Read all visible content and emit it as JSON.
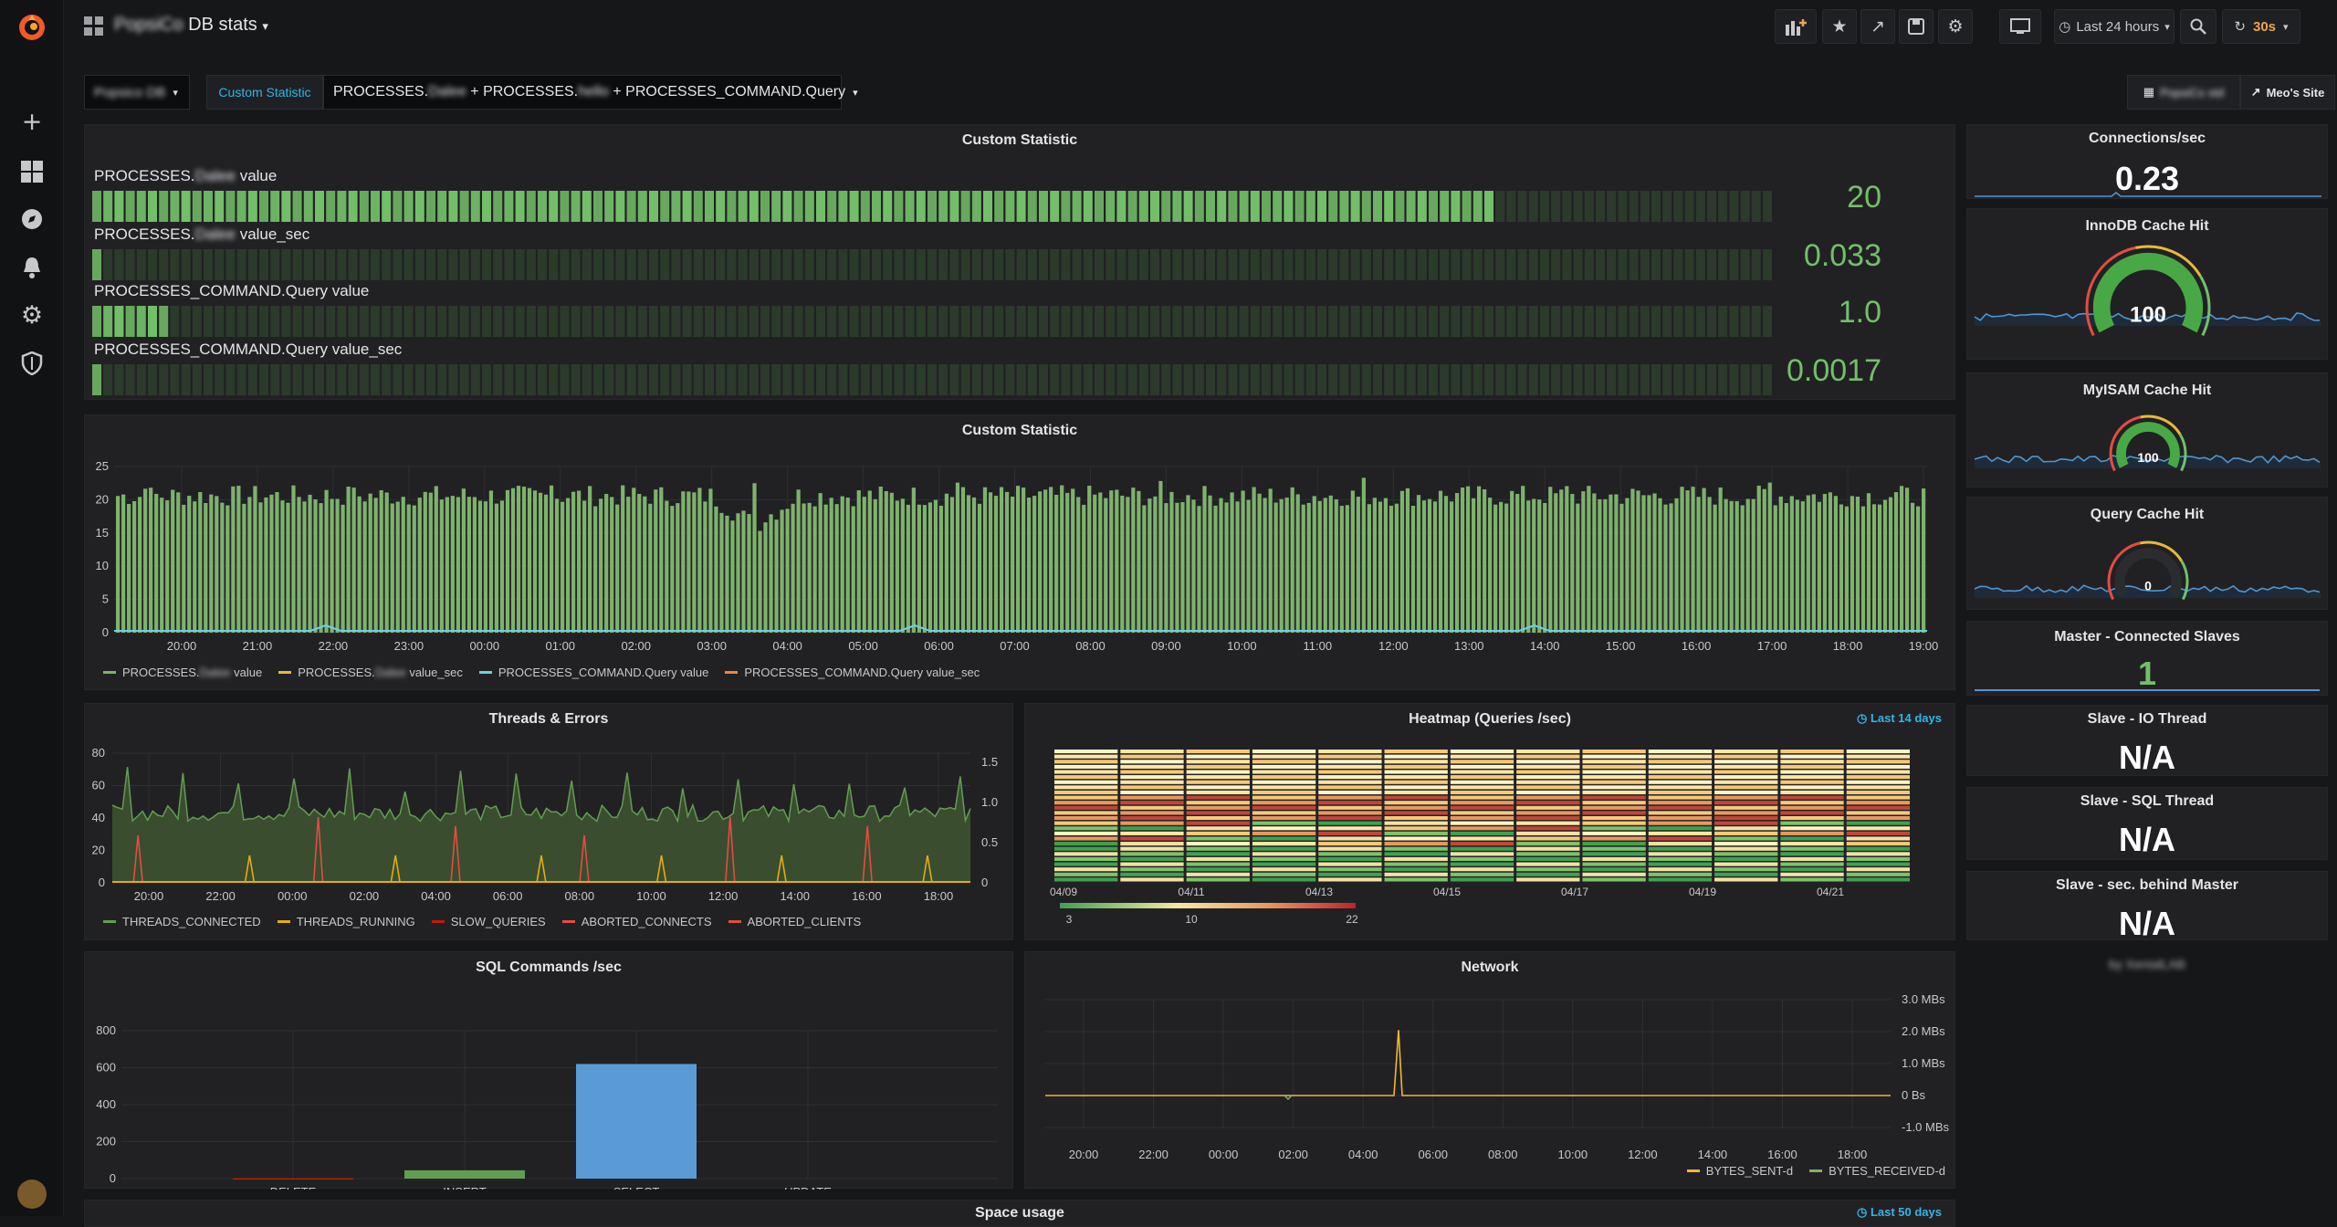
{
  "topbar": {
    "title_blur": "PopsiCo",
    "title": "DB stats",
    "time_range": "Last 24 hours",
    "refresh": "30s"
  },
  "vars": {
    "db_select": "Popsico DB",
    "stat_label": "Custom Statistic",
    "stat_value_p1": "PROCESSES.",
    "stat_value_b1": "Dalee",
    "stat_value_p2": " + PROCESSES.",
    "stat_value_b2": "hello",
    "stat_value_p3": " + PROCESSES_COMMAND.Query",
    "link1": "PopsiCo std",
    "link2": "Meo's Site"
  },
  "bargauge": {
    "title": "Custom Statistic",
    "rows": [
      {
        "label_pre": "PROCESSES.",
        "label_blur": "Dalee",
        "label_post": " value",
        "value": "20",
        "fraction": 0.835
      },
      {
        "label_pre": "PROCESSES.",
        "label_blur": "Dalee",
        "label_post": " value_sec",
        "value": "0.033",
        "fraction": 0.005
      },
      {
        "label_pre": "PROCESSES_COMMAND.Query value",
        "label_blur": "",
        "label_post": "",
        "value": "1.0",
        "fraction": 0.045
      },
      {
        "label_pre": "PROCESSES_COMMAND.Query value_sec",
        "label_blur": "",
        "label_post": "",
        "value": "0.0017",
        "fraction": 0.005
      }
    ]
  },
  "graph1": {
    "title": "Custom Statistic",
    "yticks": [
      "25",
      "20",
      "15",
      "10",
      "5",
      "0"
    ],
    "xticks": [
      "20:00",
      "21:00",
      "22:00",
      "23:00",
      "00:00",
      "01:00",
      "02:00",
      "03:00",
      "04:00",
      "05:00",
      "06:00",
      "07:00",
      "08:00",
      "09:00",
      "10:00",
      "11:00",
      "12:00",
      "13:00",
      "14:00",
      "15:00",
      "16:00",
      "17:00",
      "18:00",
      "19:00"
    ],
    "legend": [
      {
        "pre": "PROCESSES.",
        "blur": "Dalee",
        "post": " value",
        "color": "#7eb26d"
      },
      {
        "pre": "PROCESSES.",
        "blur": "Dalee",
        "post": " value_sec",
        "color": "#eab839"
      },
      {
        "pre": "PROCESSES_COMMAND.Query value",
        "blur": "",
        "post": "",
        "color": "#6ed0e0"
      },
      {
        "pre": "PROCESSES_COMMAND.Query value_sec",
        "blur": "",
        "post": "",
        "color": "#ef843c"
      }
    ]
  },
  "threads": {
    "title": "Threads & Errors",
    "yticks": [
      "80",
      "60",
      "40",
      "20",
      "0"
    ],
    "y2ticks": [
      "1.5",
      "1.0",
      "0.5",
      "0"
    ],
    "xticks": [
      "20:00",
      "22:00",
      "00:00",
      "02:00",
      "04:00",
      "06:00",
      "08:00",
      "10:00",
      "12:00",
      "14:00",
      "16:00",
      "18:00"
    ],
    "legend": [
      {
        "label": "THREADS_CONNECTED",
        "color": "#629e51"
      },
      {
        "label": "THREADS_RUNNING",
        "color": "#e5ac0e"
      },
      {
        "label": "SLOW_QUERIES",
        "color": "#bf1b00"
      },
      {
        "label": "ABORTED_CONNECTS",
        "color": "#e24d42"
      },
      {
        "label": "ABORTED_CLIENTS",
        "color": "#e24d42"
      }
    ]
  },
  "heatmap": {
    "title": "Heatmap (Queries /sec)",
    "badge": "Last 14 days",
    "xticks": [
      "04/09",
      "04/11",
      "04/13",
      "04/15",
      "04/17",
      "04/19",
      "04/21"
    ],
    "scale": [
      "3",
      "10",
      "22"
    ]
  },
  "sqlcmd": {
    "title": "SQL Commands /sec",
    "yticks": [
      "800",
      "600",
      "400",
      "200",
      "0"
    ],
    "categories": [
      "DELETE",
      "INSERT",
      "SELECT",
      "UPDATE"
    ],
    "values": [
      2,
      45,
      620,
      0
    ]
  },
  "network": {
    "title": "Network",
    "yticks": [
      "3.0 MBs",
      "2.0 MBs",
      "1.0 MBs",
      "0 Bs",
      "-1.0 MBs"
    ],
    "xticks": [
      "20:00",
      "22:00",
      "00:00",
      "02:00",
      "04:00",
      "06:00",
      "08:00",
      "10:00",
      "12:00",
      "14:00",
      "16:00",
      "18:00"
    ],
    "legend": [
      {
        "label": "BYTES_SENT-d",
        "color": "#eab839"
      },
      {
        "label": "BYTES_RECEIVED-d",
        "color": "#7eb26d"
      }
    ]
  },
  "bottom": {
    "title": "Space usage",
    "badge": "Last 50 days"
  },
  "stats": {
    "connections_title": "Connections/sec",
    "connections_value": "0.23",
    "innodb_title": "InnoDB Cache Hit",
    "innodb_value": "100",
    "myisam_title": "MyISAM Cache Hit",
    "myisam_value": "100",
    "query_title": "Query Cache Hit",
    "query_value": "0",
    "master_title": "Master - Connected Slaves",
    "master_value": "1",
    "io_title": "Slave - IO Thread",
    "io_value": "N/A",
    "sql_title": "Slave - SQL Thread",
    "sql_value": "N/A",
    "behind_title": "Slave - sec. behind Master",
    "behind_value": "N/A",
    "credit": "by XenialLAB"
  },
  "colors": {
    "green": "#73bf69",
    "bg": "#161719",
    "panel": "#212124",
    "accent": "#33b5e5",
    "refresh": "#f0a34c"
  }
}
